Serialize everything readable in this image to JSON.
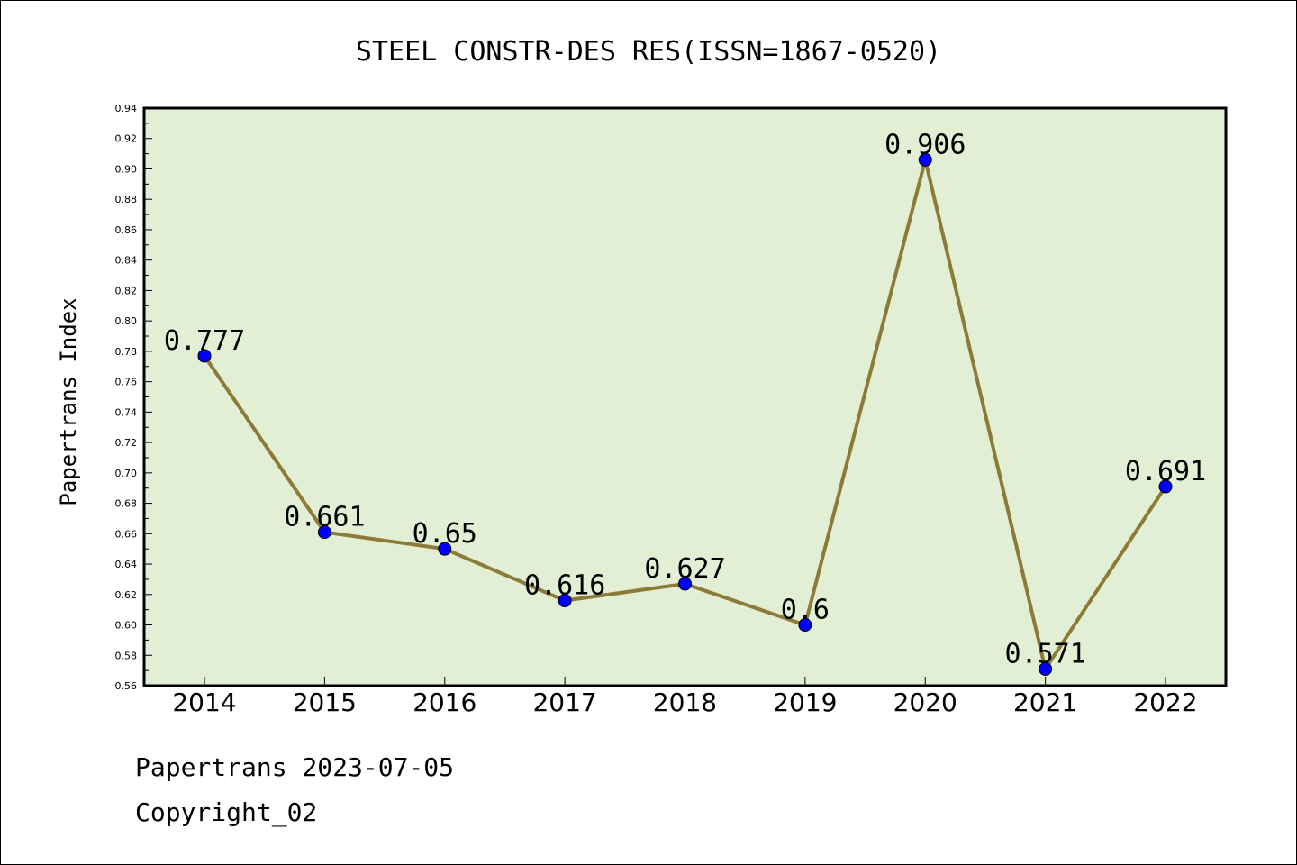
{
  "chart_data": {
    "type": "line",
    "title": "STEEL CONSTR-DES RES(ISSN=1867-0520)",
    "xlabel": "",
    "ylabel": "Papertrans Index",
    "categories": [
      "2014",
      "2015",
      "2016",
      "2017",
      "2018",
      "2019",
      "2020",
      "2021",
      "2022"
    ],
    "values": [
      0.777,
      0.661,
      0.65,
      0.616,
      0.627,
      0.6,
      0.906,
      0.571,
      0.691
    ],
    "data_labels": [
      "0.777",
      "0.661",
      "0.65",
      "0.616",
      "0.627",
      "0.6",
      "0.906",
      "0.571",
      "0.691"
    ],
    "ylim": [
      0.56,
      0.94
    ],
    "yticks": [
      "0.56",
      "0.58",
      "0.60",
      "0.62",
      "0.64",
      "0.66",
      "0.68",
      "0.70",
      "0.72",
      "0.74",
      "0.76",
      "0.78",
      "0.80",
      "0.82",
      "0.84",
      "0.86",
      "0.88",
      "0.90",
      "0.92",
      "0.94"
    ],
    "grid": false,
    "colors": {
      "plot_background": "#e2efd4",
      "line": "#8c7a38",
      "marker": "#0000ff"
    }
  },
  "footer": {
    "line1": "Papertrans 2023-07-05",
    "line2": "Copyright_02"
  }
}
